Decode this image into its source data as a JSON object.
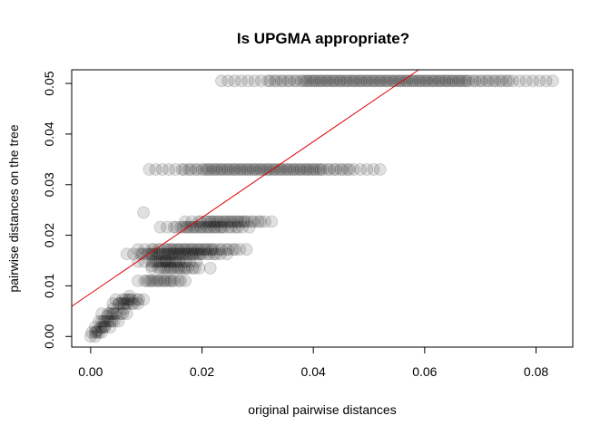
{
  "chart_data": {
    "type": "scatter",
    "title": "Is UPGMA appropriate?",
    "xlabel": "original pairwise distances",
    "ylabel": "pairwise distances on the tree",
    "xlim": [
      -0.0034,
      0.0866
    ],
    "ylim": [
      -0.0021,
      0.0527
    ],
    "x_ticks": [
      "0.00",
      "0.02",
      "0.04",
      "0.06",
      "0.08"
    ],
    "y_ticks": [
      "0.00",
      "0.01",
      "0.02",
      "0.03",
      "0.04",
      "0.05"
    ],
    "grid": false,
    "legend": "none",
    "point_style": {
      "fill": "#000000",
      "opacity": 0.12,
      "shape": "filled circle"
    },
    "fit_line": {
      "color": "#dd0000",
      "intercept": 0.0085,
      "slope": 0.75
    },
    "bands": [
      {
        "y": 0.0505,
        "x_range": [
          0.0235,
          0.083
        ]
      },
      {
        "y": 0.033,
        "x_range": [
          0.0105,
          0.052
        ]
      },
      {
        "y": 0.0227,
        "x_range": [
          0.017,
          0.0325
        ]
      },
      {
        "y": 0.0216,
        "x_range": [
          0.0125,
          0.0285
        ]
      },
      {
        "y": 0.0172,
        "x_range": [
          0.0085,
          0.028
        ]
      },
      {
        "y": 0.0163,
        "x_range": [
          0.0065,
          0.0245
        ]
      },
      {
        "y": 0.0148,
        "x_range": [
          0.0085,
          0.019
        ]
      },
      {
        "y": 0.0135,
        "x_range": [
          0.011,
          0.0195
        ]
      },
      {
        "y": 0.011,
        "x_range": [
          0.0085,
          0.017
        ]
      },
      {
        "y": 0.0073,
        "x_range": [
          0.0045,
          0.0095
        ]
      },
      {
        "y": 0.0065,
        "x_range": [
          0.004,
          0.0085
        ]
      },
      {
        "y": 0.0045,
        "x_range": [
          0.002,
          0.0065
        ]
      },
      {
        "y": 0.003,
        "x_range": [
          0.0015,
          0.005
        ]
      },
      {
        "y": 0.0018,
        "x_range": [
          0.0008,
          0.0035
        ]
      },
      {
        "y": 0.0008,
        "x_range": [
          0.0002,
          0.002
        ]
      },
      {
        "y": 0.0,
        "x_range": [
          0.0,
          0.0008
        ]
      }
    ],
    "extra_points": [
      [
        0.0215,
        0.0135
      ],
      [
        0.0095,
        0.0245
      ],
      [
        0.0135,
        0.015
      ],
      [
        0.011,
        0.014
      ],
      [
        0.006,
        0.0055
      ],
      [
        0.003,
        0.004
      ],
      [
        0.0025,
        0.002
      ],
      [
        0.005,
        0.0065
      ],
      [
        0.004,
        0.0055
      ],
      [
        0.007,
        0.008
      ],
      [
        0.0012,
        0.0012
      ],
      [
        0.002,
        0.003
      ]
    ]
  }
}
